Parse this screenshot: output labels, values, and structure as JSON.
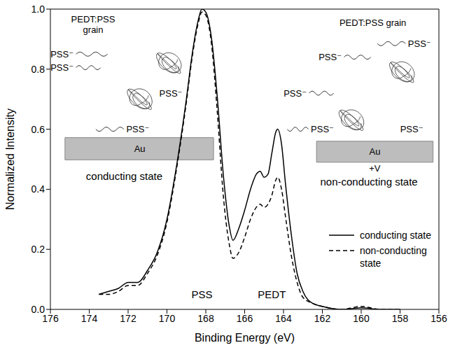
{
  "chart_data": {
    "type": "line",
    "x_label": "Binding Energy (eV)",
    "y_label": "Normalized Intensity",
    "x": [
      173.5,
      173,
      172.5,
      172,
      171.5,
      171,
      170.5,
      170,
      169.5,
      169,
      168.7,
      168.4,
      168.2,
      168,
      167.7,
      167.4,
      167.1,
      166.8,
      166.6,
      166.3,
      166,
      165.7,
      165.4,
      165.2,
      165,
      164.8,
      164.6,
      164.4,
      164.3,
      164.1,
      163.9,
      163.6,
      163.3,
      163,
      162.5,
      162,
      161,
      160,
      159,
      158
    ],
    "series": [
      {
        "name": "conducting state",
        "color": "#000000",
        "line_style": "solid",
        "values": [
          0.05,
          0.06,
          0.07,
          0.09,
          0.09,
          0.13,
          0.19,
          0.3,
          0.48,
          0.7,
          0.85,
          0.96,
          1.0,
          0.99,
          0.9,
          0.7,
          0.45,
          0.28,
          0.23,
          0.27,
          0.33,
          0.4,
          0.45,
          0.46,
          0.44,
          0.45,
          0.52,
          0.59,
          0.6,
          0.55,
          0.42,
          0.25,
          0.12,
          0.06,
          0.02,
          0.01,
          0.0,
          0.005,
          0.0,
          0.0
        ]
      },
      {
        "name": "non-conducting state",
        "color": "#000000",
        "line_style": "dashed",
        "values": [
          0.05,
          0.05,
          0.06,
          0.08,
          0.08,
          0.12,
          0.18,
          0.29,
          0.47,
          0.69,
          0.84,
          0.95,
          0.99,
          0.98,
          0.88,
          0.65,
          0.38,
          0.22,
          0.17,
          0.19,
          0.24,
          0.3,
          0.34,
          0.35,
          0.34,
          0.35,
          0.38,
          0.43,
          0.44,
          0.4,
          0.31,
          0.18,
          0.09,
          0.04,
          0.02,
          0.01,
          0.0,
          0.01,
          0.0,
          0.0
        ]
      }
    ],
    "xlim": [
      176,
      156
    ],
    "xticks": [
      176,
      174,
      172,
      170,
      168,
      166,
      164,
      162,
      160,
      158,
      156
    ],
    "ylim": [
      0,
      1
    ],
    "yticks": [
      {
        "value": 0,
        "label": "0.0"
      },
      {
        "value": 0.2,
        "label": "0.2"
      },
      {
        "value": 0.4,
        "label": "0.4"
      },
      {
        "value": 0.6,
        "label": "0.6"
      },
      {
        "value": 0.8,
        "label": "0.8"
      },
      {
        "value": 1,
        "label": "1.0"
      }
    ],
    "grid": false,
    "legend": "lower right",
    "annotations": [
      "PSS",
      "PEDT"
    ],
    "insets": [
      {
        "grain_label": "PEDT:PSS grain",
        "anion_labels": [
          "PSS⁻",
          "PSS⁻",
          "PSS⁻",
          "PSS⁻"
        ],
        "electrode": "Au",
        "state": "conducting state"
      },
      {
        "grain_label": "PEDT:PSS grain",
        "anion_labels": [
          "PSS⁻",
          "PSS⁻",
          "PSS⁻",
          "PSS⁻",
          "PSS⁻"
        ],
        "electrode": "Au",
        "bias": "+V",
        "state": "non-conducting state"
      }
    ]
  }
}
